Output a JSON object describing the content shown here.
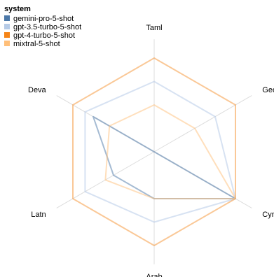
{
  "chart_data": {
    "type": "radar",
    "axes": [
      "Taml",
      "Geor",
      "Cyrl",
      "Arab",
      "Latn",
      "Deva"
    ],
    "rmax": 1.0,
    "legend": {
      "title": "system",
      "placement": "top-left"
    },
    "series": [
      {
        "name": "gemini-pro-5-shot",
        "color": "#4c78a8",
        "opacity": 0.5,
        "values": [
          0.0,
          0.0,
          1.0,
          0.5,
          0.5,
          0.75
        ]
      },
      {
        "name": "gpt-3.5-turbo-5-shot",
        "color": "#b6cbe7",
        "opacity": 0.55,
        "values": [
          0.75,
          0.75,
          1.0,
          0.75,
          0.85,
          0.85
        ]
      },
      {
        "name": "gpt-4-turbo-5-shot",
        "color": "#f58518",
        "opacity": 0.45,
        "values": [
          1.0,
          1.0,
          1.0,
          1.0,
          1.0,
          1.0
        ]
      },
      {
        "name": "mixtral-5-shot",
        "color": "#ffbf79",
        "opacity": 0.5,
        "values": [
          0.5,
          0.5,
          1.0,
          0.5,
          0.6,
          0.55
        ]
      }
    ]
  }
}
